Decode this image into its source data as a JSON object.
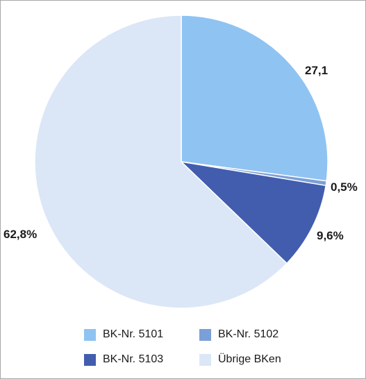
{
  "chart_data": {
    "type": "pie",
    "title": "",
    "slices": [
      {
        "label": "BK-Nr. 5101",
        "value": 27.1,
        "value_label": "27,1",
        "color": "#8fc3f2"
      },
      {
        "label": "BK-Nr. 5102",
        "value": 0.5,
        "value_label": "0,5%",
        "color": "#7b9fd8"
      },
      {
        "label": "BK-Nr. 5103",
        "value": 9.6,
        "value_label": "9,6%",
        "color": "#425dae"
      },
      {
        "label": "Übrige BKen",
        "value": 62.8,
        "value_label": "62,8%",
        "color": "#dbe7f7"
      }
    ],
    "legend_position": "bottom"
  }
}
